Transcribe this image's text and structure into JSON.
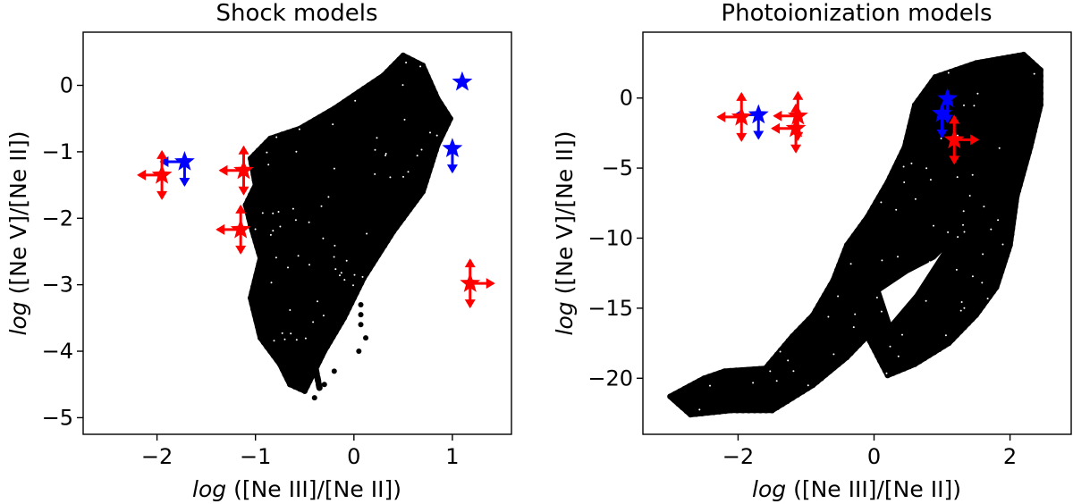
{
  "chart_data": [
    {
      "type": "scatter",
      "title": "Shock models",
      "xlabel_log": "log",
      "xlabel_rest": " ([Ne III]/[Ne II])",
      "ylabel_log": "log",
      "ylabel_rest": " ([Ne V]/[Ne II])",
      "xlim": [
        -2.75,
        1.6
      ],
      "ylim": [
        -5.25,
        0.8
      ],
      "xticks": [
        -2,
        -1,
        0,
        1
      ],
      "xtick_labels": [
        "−2",
        "−1",
        "0",
        "1"
      ],
      "yticks": [
        0,
        -1,
        -2,
        -3,
        -4,
        -5
      ],
      "ytick_labels": [
        "0",
        "−1",
        "−2",
        "−3",
        "−4",
        "−5"
      ],
      "model_cloud": {
        "color": "#000000",
        "outline": [
          [
            -1.05,
            -1.1
          ],
          [
            -0.85,
            -0.8
          ],
          [
            -0.55,
            -0.65
          ],
          [
            -0.2,
            -0.35
          ],
          [
            0.1,
            -0.05
          ],
          [
            0.3,
            0.15
          ],
          [
            0.5,
            0.45
          ],
          [
            0.7,
            0.3
          ],
          [
            0.85,
            -0.2
          ],
          [
            0.98,
            -0.5
          ],
          [
            0.85,
            -0.9
          ],
          [
            0.7,
            -1.6
          ],
          [
            0.4,
            -2.2
          ],
          [
            0.1,
            -2.9
          ],
          [
            -0.1,
            -3.5
          ],
          [
            -0.3,
            -4.0
          ],
          [
            -0.5,
            -4.6
          ],
          [
            -0.65,
            -4.5
          ],
          [
            -0.75,
            -4.2
          ],
          [
            -0.95,
            -3.8
          ],
          [
            -1.05,
            -3.2
          ],
          [
            -0.95,
            -2.6
          ],
          [
            -1.05,
            -2.1
          ],
          [
            -1.1,
            -1.8
          ],
          [
            -1.0,
            -1.5
          ]
        ],
        "fingers": [
          [
            [
              -1.0,
              -2.1
            ],
            [
              -0.72,
              -3.4
            ]
          ],
          [
            [
              -0.95,
              -2.3
            ],
            [
              -0.7,
              -3.8
            ]
          ],
          [
            [
              -0.9,
              -2.6
            ],
            [
              -0.62,
              -4.0
            ]
          ],
          [
            [
              -0.8,
              -2.5
            ],
            [
              -0.52,
              -4.25
            ]
          ],
          [
            [
              -0.7,
              -2.6
            ],
            [
              -0.45,
              -4.4
            ]
          ],
          [
            [
              -0.6,
              -2.7
            ],
            [
              -0.35,
              -4.55
            ]
          ]
        ],
        "bottom_tail": [
          [
            -0.5,
            -4.5
          ],
          [
            -0.4,
            -4.7
          ],
          [
            -0.3,
            -4.5
          ],
          [
            -0.2,
            -4.3
          ],
          [
            0.07,
            -3.3
          ],
          [
            0.07,
            -3.45
          ],
          [
            0.07,
            -3.6
          ],
          [
            0.12,
            -3.8
          ],
          [
            0.05,
            -4.0
          ],
          [
            -0.6,
            -4.5
          ]
        ]
      },
      "points": [
        {
          "color": "#0000ff",
          "marker": "star",
          "x": 1.1,
          "y": 0.05,
          "limits": []
        },
        {
          "color": "#0000ff",
          "marker": "star",
          "x": 1.0,
          "y": -0.95,
          "limits": [
            "down"
          ]
        },
        {
          "color": "#0000ff",
          "marker": "star",
          "x": -1.72,
          "y": -1.15,
          "limits": [
            "down",
            "left"
          ]
        },
        {
          "color": "#ff0000",
          "marker": "star",
          "x": -1.95,
          "y": -1.35,
          "limits": [
            "left",
            "up",
            "down"
          ]
        },
        {
          "color": "#ff0000",
          "marker": "star",
          "x": -1.12,
          "y": -1.28,
          "limits": [
            "left",
            "up",
            "down"
          ]
        },
        {
          "color": "#ff0000",
          "marker": "star",
          "x": -1.15,
          "y": -2.17,
          "limits": [
            "left",
            "up",
            "down"
          ]
        },
        {
          "color": "#ff0000",
          "marker": "star",
          "x": 1.18,
          "y": -2.98,
          "limits": [
            "right",
            "up",
            "down"
          ]
        }
      ]
    },
    {
      "type": "scatter",
      "title": "Photoionization models",
      "xlabel_log": "log",
      "xlabel_rest": " ([Ne III]/[Ne II])",
      "ylabel_log": "log",
      "ylabel_rest": " ([Ne V]/[Ne II])",
      "xlim": [
        -3.4,
        2.9
      ],
      "ylim": [
        -24.0,
        4.7
      ],
      "xticks": [
        -2,
        0,
        2
      ],
      "xtick_labels": [
        "−2",
        "0",
        "2"
      ],
      "yticks": [
        0,
        -5,
        -10,
        -15,
        -20
      ],
      "ytick_labels": [
        "0",
        "−5",
        "−10",
        "−15",
        "−20"
      ],
      "model_cloud": {
        "color": "#000000",
        "outline": [
          [
            -2.2,
            -19.5
          ],
          [
            -1.6,
            -19.3
          ],
          [
            -1.2,
            -17.0
          ],
          [
            -0.9,
            -15.5
          ],
          [
            -0.6,
            -13.0
          ],
          [
            -0.4,
            -10.5
          ],
          [
            -0.1,
            -8.5
          ],
          [
            0.2,
            -6.0
          ],
          [
            0.45,
            -3.5
          ],
          [
            0.6,
            -0.5
          ],
          [
            0.9,
            1.5
          ],
          [
            1.5,
            2.5
          ],
          [
            2.2,
            3.1
          ],
          [
            2.45,
            2.0
          ],
          [
            2.45,
            -0.5
          ],
          [
            2.3,
            -3.5
          ],
          [
            2.1,
            -7.0
          ],
          [
            2.0,
            -10.5
          ],
          [
            1.8,
            -13.5
          ],
          [
            1.5,
            -15.5
          ],
          [
            1.1,
            -17.5
          ],
          [
            0.6,
            -19.0
          ],
          [
            0.2,
            -19.8
          ],
          [
            -0.1,
            -17.0
          ],
          [
            -0.4,
            -18.5
          ],
          [
            -0.9,
            -20.5
          ],
          [
            -1.5,
            -22.3
          ],
          [
            -2.1,
            -22.3
          ],
          [
            -2.7,
            -22.6
          ],
          [
            -3.0,
            -21.3
          ],
          [
            -2.5,
            -20.0
          ]
        ],
        "notches": [
          [
            [
              0.1,
              -13.8
            ],
            [
              0.5,
              -12.5
            ],
            [
              0.9,
              -11.5
            ],
            [
              1.0,
              -11.0
            ],
            [
              0.6,
              -14.0
            ],
            [
              0.25,
              -16.0
            ]
          ]
        ]
      },
      "points": [
        {
          "color": "#0000ff",
          "marker": "star",
          "x": 1.08,
          "y": -0.05,
          "limits": [
            "down"
          ]
        },
        {
          "color": "#0000ff",
          "marker": "star",
          "x": 1.0,
          "y": -1.1,
          "limits": [
            "down"
          ]
        },
        {
          "color": "#0000ff",
          "marker": "star",
          "x": -1.7,
          "y": -1.2,
          "limits": [
            "down",
            "left"
          ]
        },
        {
          "color": "#ff0000",
          "marker": "star",
          "x": -1.95,
          "y": -1.35,
          "limits": [
            "left",
            "up",
            "down"
          ]
        },
        {
          "color": "#ff0000",
          "marker": "star",
          "x": -1.12,
          "y": -1.28,
          "limits": [
            "left",
            "up",
            "down"
          ]
        },
        {
          "color": "#ff0000",
          "marker": "star",
          "x": -1.15,
          "y": -2.17,
          "limits": [
            "left",
            "up",
            "down"
          ]
        },
        {
          "color": "#ff0000",
          "marker": "star",
          "x": 1.18,
          "y": -2.98,
          "limits": [
            "right",
            "up",
            "down"
          ]
        }
      ]
    }
  ]
}
